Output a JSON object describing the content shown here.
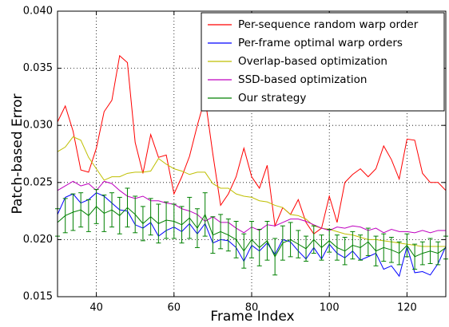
{
  "chart_data": {
    "type": "line",
    "xlabel": "Frame Index",
    "ylabel": "Patch-based Error",
    "x": [
      30,
      32,
      34,
      36,
      38,
      40,
      42,
      44,
      46,
      48,
      50,
      52,
      54,
      56,
      58,
      60,
      62,
      64,
      66,
      68,
      70,
      72,
      74,
      76,
      78,
      80,
      82,
      84,
      86,
      88,
      90,
      92,
      94,
      96,
      98,
      100,
      102,
      104,
      106,
      108,
      110,
      112,
      114,
      116,
      118,
      120,
      122,
      124,
      126,
      128,
      130
    ],
    "xlim": [
      30,
      130
    ],
    "ylim": [
      0.015,
      0.04
    ],
    "xticks": [
      40,
      60,
      80,
      100,
      120
    ],
    "yticks": [
      0.015,
      {
        "value": 0.02,
        "label": "0.020"
      },
      0.025,
      {
        "value": 0.03,
        "label": "0.030"
      },
      0.035,
      {
        "value": 0.04,
        "label": "0.040"
      }
    ],
    "grid": true,
    "legend": "upper right",
    "series": [
      {
        "name": "Per-sequence random warp order",
        "color": "#ff0000",
        "values": [
          0.0303,
          0.0317,
          0.0295,
          0.0261,
          0.0259,
          0.028,
          0.0312,
          0.0322,
          0.0361,
          0.0355,
          0.0285,
          0.0258,
          0.0292,
          0.0272,
          0.0274,
          0.024,
          0.0255,
          0.0273,
          0.03,
          0.0324,
          0.0275,
          0.023,
          0.024,
          0.0255,
          0.028,
          0.0255,
          0.0245,
          0.0265,
          0.0212,
          0.0228,
          0.0222,
          0.0235,
          0.0215,
          0.0205,
          0.021,
          0.0238,
          0.0215,
          0.025,
          0.0257,
          0.0262,
          0.0255,
          0.0262,
          0.0282,
          0.027,
          0.0253,
          0.0288,
          0.0287,
          0.0258,
          0.025,
          0.025,
          0.0243
        ]
      },
      {
        "name": "Per-frame optimal warp orders",
        "color": "#0000ff",
        "values": [
          0.0222,
          0.0237,
          0.024,
          0.0232,
          0.0235,
          0.0241,
          0.0238,
          0.0232,
          0.0226,
          0.0225,
          0.0213,
          0.021,
          0.0215,
          0.0203,
          0.0208,
          0.0211,
          0.0207,
          0.0214,
          0.0205,
          0.0214,
          0.0197,
          0.02,
          0.0199,
          0.0193,
          0.0181,
          0.0195,
          0.019,
          0.0197,
          0.0187,
          0.02,
          0.0198,
          0.019,
          0.0183,
          0.0193,
          0.0183,
          0.0196,
          0.0188,
          0.0184,
          0.019,
          0.0182,
          0.0185,
          0.0188,
          0.0174,
          0.0177,
          0.0168,
          0.0194,
          0.0171,
          0.0172,
          0.0169,
          0.0179,
          0.0194
        ]
      },
      {
        "name": "Overlap-based optimization",
        "color": "#bfbf00",
        "values": [
          0.0277,
          0.0281,
          0.029,
          0.0287,
          0.0272,
          0.0262,
          0.0252,
          0.0255,
          0.0255,
          0.0258,
          0.0259,
          0.0259,
          0.026,
          0.0271,
          0.0266,
          0.0262,
          0.026,
          0.0257,
          0.0259,
          0.0259,
          0.0249,
          0.0245,
          0.0245,
          0.024,
          0.0238,
          0.0237,
          0.0234,
          0.0233,
          0.023,
          0.0228,
          0.0222,
          0.0221,
          0.0218,
          0.0212,
          0.021,
          0.0209,
          0.0207,
          0.0205,
          0.0204,
          0.0202,
          0.02,
          0.02,
          0.0199,
          0.0198,
          0.0197,
          0.0196,
          0.0195,
          0.0194,
          0.0194,
          0.0194,
          0.0194
        ]
      },
      {
        "name": "SSD-based optimization",
        "color": "#bf00bf",
        "values": [
          0.0243,
          0.0247,
          0.0251,
          0.0247,
          0.0249,
          0.0243,
          0.0251,
          0.0249,
          0.0243,
          0.0238,
          0.0236,
          0.0238,
          0.0234,
          0.0234,
          0.0232,
          0.0231,
          0.0227,
          0.0225,
          0.0222,
          0.0216,
          0.022,
          0.0215,
          0.0215,
          0.021,
          0.0206,
          0.0211,
          0.0208,
          0.0213,
          0.0212,
          0.0215,
          0.0218,
          0.0218,
          0.0216,
          0.0213,
          0.021,
          0.0208,
          0.0211,
          0.021,
          0.0212,
          0.0211,
          0.0208,
          0.021,
          0.0206,
          0.0209,
          0.0207,
          0.0207,
          0.0206,
          0.0208,
          0.0206,
          0.0208,
          0.0208
        ]
      },
      {
        "name": "Our strategy",
        "color": "#008000",
        "values": [
          0.0215,
          0.0221,
          0.0224,
          0.0226,
          0.0221,
          0.0229,
          0.0223,
          0.0226,
          0.0221,
          0.0228,
          0.0222,
          0.0214,
          0.022,
          0.0214,
          0.0217,
          0.0216,
          0.0213,
          0.0219,
          0.021,
          0.0222,
          0.0204,
          0.0207,
          0.0204,
          0.02,
          0.019,
          0.02,
          0.0193,
          0.0199,
          0.0185,
          0.0197,
          0.02,
          0.0196,
          0.0192,
          0.02,
          0.0193,
          0.0199,
          0.0193,
          0.019,
          0.0195,
          0.0193,
          0.0198,
          0.019,
          0.0193,
          0.0191,
          0.0188,
          0.0195,
          0.0185,
          0.0188,
          0.019,
          0.0188,
          0.0193
        ],
        "errors": [
          0.0012,
          0.0015,
          0.0016,
          0.0015,
          0.0014,
          0.0015,
          0.0016,
          0.0015,
          0.0016,
          0.0017,
          0.0016,
          0.0015,
          0.0016,
          0.0017,
          0.0016,
          0.0015,
          0.0016,
          0.0018,
          0.0017,
          0.0019,
          0.0016,
          0.0015,
          0.0014,
          0.0016,
          0.0015,
          0.0016,
          0.0016,
          0.0017,
          0.0016,
          0.0015,
          0.0015,
          0.0012,
          0.0011,
          0.0012,
          0.0011,
          0.001,
          0.0011,
          0.0012,
          0.0012,
          0.0011,
          0.0012,
          0.0013,
          0.0012,
          0.0011,
          0.001,
          0.001,
          0.0011,
          0.001,
          0.0011,
          0.001,
          0.001
        ]
      }
    ]
  }
}
